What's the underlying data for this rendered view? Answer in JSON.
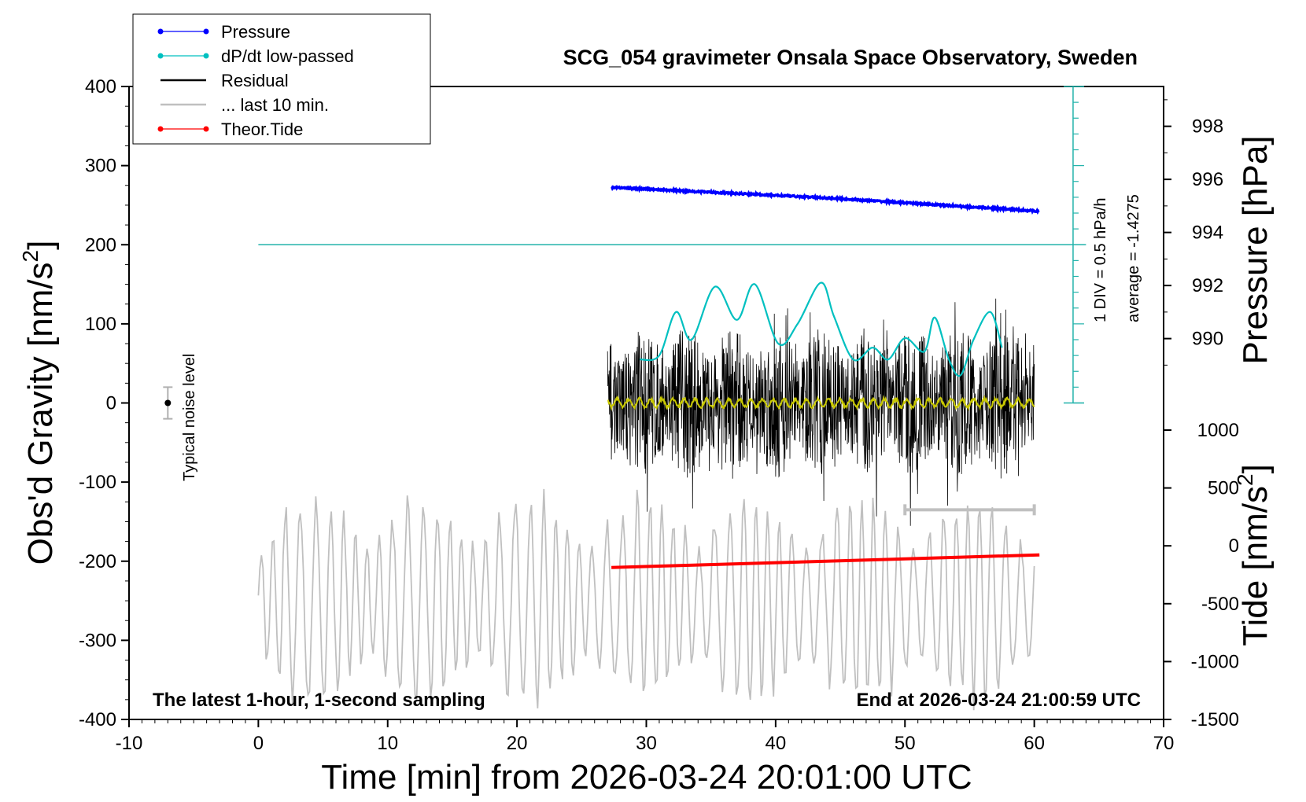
{
  "chart_data": {
    "type": "line",
    "title": "SCG_054 gravimeter Onsala Space Observatory, Sweden",
    "xlabel": "Time [min] from 2026-03-24 20:01:00 UTC",
    "ylabel_left_main": "Obs'd Gravity [nm/s",
    "ylabel_left_sup": "2",
    "ylabel_left_end": "]",
    "ylabel_right_pressure": "Pressure [hPa]",
    "ylabel_right_tide_main": "Tide [nm/s",
    "ylabel_right_tide_sup": "2",
    "ylabel_right_tide_end": "]",
    "xlim": [
      -10,
      70
    ],
    "ylim": [
      -400,
      400
    ],
    "x_ticks": [
      "-10",
      "0",
      "10",
      "20",
      "30",
      "40",
      "50",
      "60",
      "70"
    ],
    "y_ticks": [
      "-400",
      "-300",
      "-200",
      "-100",
      "0",
      "100",
      "200",
      "300",
      "400"
    ],
    "pressure_ticks": [
      "990",
      "992",
      "994",
      "996",
      "998"
    ],
    "pressure_range": [
      987.5,
      999.5
    ],
    "tide_ticks": [
      "-1500",
      "-1000",
      "-500",
      "0",
      "500",
      "1000"
    ],
    "tide_range": [
      -1500,
      1000
    ],
    "bottom_left_note": "The latest 1-hour, 1-second sampling",
    "bottom_right_note": "End at 2026-03-24 21:00:59 UTC",
    "dpdt_scale_note": "1 DIV = 0.5 hPa/h",
    "dpdt_average_note": "average = -1.4275",
    "noise_label": "Typical noise level",
    "noise_level": {
      "x": -7,
      "y": 0,
      "half_range": 20
    },
    "dpdt_reference_level": 200,
    "legend": [
      {
        "name": "Pressure",
        "color": "#0000ff",
        "marker": "dot"
      },
      {
        "name": "dP/dt low-passed",
        "color": "#00c0c0",
        "marker": "dot"
      },
      {
        "name": "Residual",
        "color": "#000000",
        "marker": "line"
      },
      {
        "name": "... last 10 min.",
        "color": "#c0c0c0",
        "marker": "line"
      },
      {
        "name": "Theor.Tide",
        "color": "#ff0000",
        "marker": "dot"
      }
    ],
    "series": [
      {
        "name": "Pressure",
        "x_range": [
          27.3,
          60.4
        ],
        "values_hPa": [
          995.7,
          995.3,
          994.8
        ],
        "x": [
          27.3,
          44,
          60.4
        ]
      },
      {
        "name": "dP/dt low-passed",
        "x": [
          29.5,
          31.0,
          32.3,
          33.5,
          35.3,
          37.0,
          38.4,
          40.2,
          41.7,
          43.5,
          44.5,
          46.0,
          47.5,
          48.7,
          50.0,
          51.5,
          52.3,
          53.4,
          54.3,
          55.3,
          56.6,
          57.5
        ],
        "values": [
          55,
          60,
          115,
          80,
          147,
          105,
          150,
          75,
          100,
          152,
          110,
          55,
          70,
          55,
          82,
          65,
          108,
          55,
          35,
          80,
          115,
          70
        ]
      },
      {
        "name": "Residual",
        "x_range": [
          27.0,
          60.0
        ],
        "amplitude_max": 160,
        "mean": 0
      },
      {
        "name": "Residual low-passed",
        "color": "#c8c800",
        "x_range": [
          27.0,
          60.0
        ],
        "mean": 0
      },
      {
        "name": "... last 10 min.",
        "x_range": [
          0.0,
          60.0
        ],
        "mean": -250,
        "amplitude_max": 140
      },
      {
        "name": "Theor.Tide",
        "x": [
          27.3,
          60.4
        ],
        "values": [
          -208,
          -192
        ]
      }
    ],
    "range_marker": {
      "x": [
        50,
        60
      ],
      "y": -135
    }
  }
}
